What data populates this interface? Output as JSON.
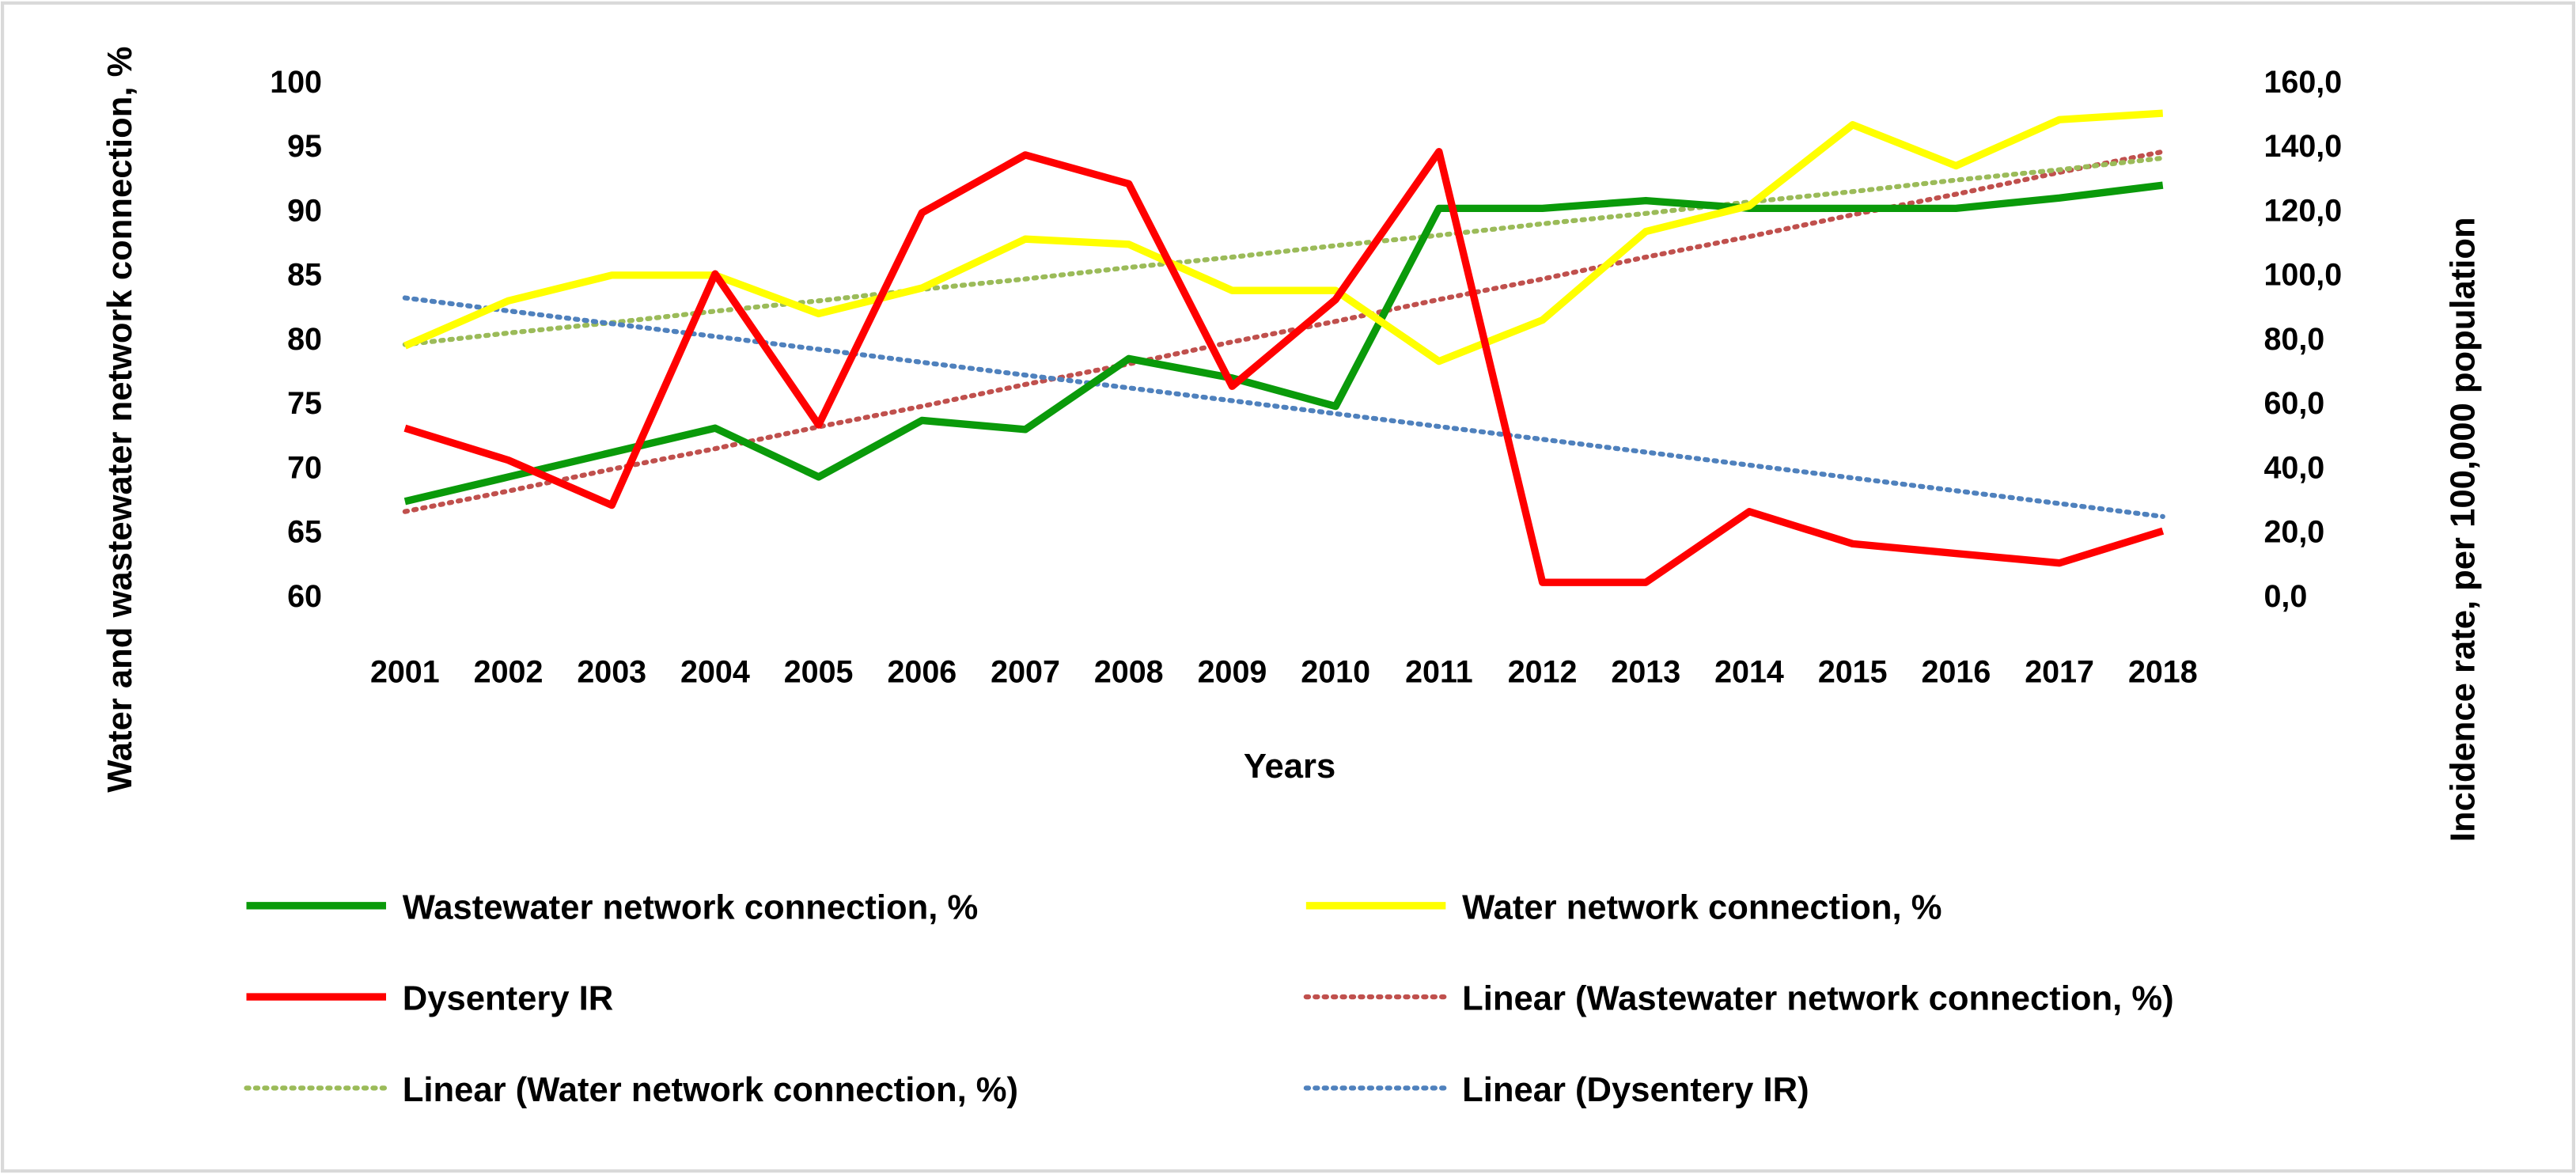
{
  "chart_data": {
    "type": "line",
    "x_label": "Years",
    "y_label": "Water and wastewater network connection, %",
    "y2_label": "Incidence rate, per 100,000 population",
    "categories": [
      "2001",
      "2002",
      "2003",
      "2004",
      "2005",
      "2006",
      "2007",
      "2008",
      "2009",
      "2010",
      "2011",
      "2012",
      "2013",
      "2014",
      "2015",
      "2016",
      "2017",
      "2018"
    ],
    "ylim": [
      60,
      100
    ],
    "yticks": [
      60,
      65,
      70,
      75,
      80,
      85,
      90,
      95,
      100
    ],
    "y2lim": [
      0,
      160
    ],
    "y2ticks": [
      {
        "value": 0,
        "label": "0,0"
      },
      {
        "value": 20,
        "label": "20,0"
      },
      {
        "value": 40,
        "label": "40,0"
      },
      {
        "value": 60,
        "label": "60,0"
      },
      {
        "value": 80,
        "label": "80,0"
      },
      {
        "value": 100,
        "label": "100,0"
      },
      {
        "value": 120,
        "label": "120,0"
      },
      {
        "value": 140,
        "label": "140,0"
      },
      {
        "value": 160,
        "label": "160,0"
      }
    ],
    "legend": "bottom",
    "series": [
      {
        "name": "Wastewater network connection, %",
        "color": "#0a9a0a",
        "style": "solid",
        "values": [
          67.3,
          69.2,
          71.1,
          73.0,
          69.2,
          73.6,
          72.9,
          78.4,
          76.9,
          74.7,
          90.1,
          90.1,
          90.7,
          90.1,
          90.1,
          90.1,
          90.9,
          91.9
        ]
      },
      {
        "name": "Water network connection, %",
        "color": "#ffff00",
        "style": "solid",
        "values": [
          79.4,
          82.9,
          84.9,
          84.9,
          81.9,
          83.9,
          87.7,
          87.3,
          83.7,
          83.7,
          78.2,
          81.4,
          88.3,
          90.3,
          96.6,
          93.4,
          97.0,
          97.5
        ]
      },
      {
        "name": "Dysentery IR",
        "color": "#ff0000",
        "style": "solid",
        "axis": "y2",
        "values": [
          52,
          42,
          28,
          100,
          53,
          119,
          137,
          128,
          65,
          92,
          138,
          4,
          4,
          26,
          16,
          13,
          10,
          20
        ]
      },
      {
        "name": "Linear (Wastewater network connection, %)",
        "color": "#c0504d",
        "style": "dotted",
        "values": [
          66.5,
          68.1,
          69.8,
          71.4,
          73.1,
          74.7,
          76.4,
          78.0,
          79.7,
          81.3,
          83.0,
          84.6,
          86.3,
          87.9,
          89.6,
          91.2,
          92.9,
          94.5
        ]
      },
      {
        "name": "Linear (Water network connection, %)",
        "color": "#9bbb59",
        "style": "dotted",
        "values": [
          79.5,
          80.4,
          81.2,
          82.1,
          82.9,
          83.8,
          84.6,
          85.5,
          86.3,
          87.2,
          88.0,
          88.9,
          89.7,
          90.6,
          91.4,
          92.3,
          93.1,
          94.0
        ]
      },
      {
        "name": "Linear (Dysentery IR)",
        "color": "#4f81bd",
        "style": "dotted",
        "axis": "y2",
        "values": [
          92.5,
          88.5,
          84.5,
          80.5,
          76.5,
          72.5,
          68.5,
          64.5,
          60.5,
          56.5,
          52.5,
          48.5,
          44.5,
          40.5,
          36.5,
          32.5,
          28.5,
          24.5
        ]
      }
    ]
  }
}
